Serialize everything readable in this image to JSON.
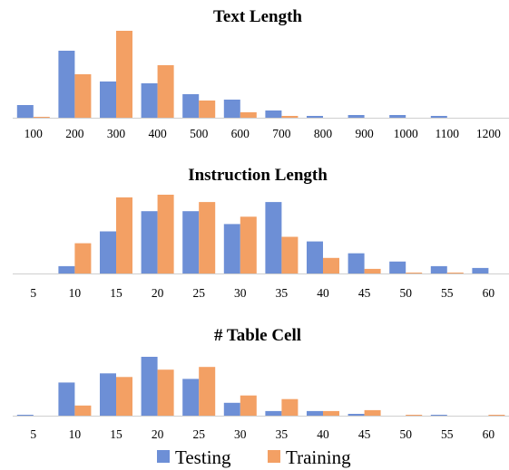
{
  "colors": {
    "testing": "#6d8fd6",
    "training": "#f3a064",
    "axis": "#cfcfcf"
  },
  "legend": {
    "items": [
      {
        "label": "Testing"
      },
      {
        "label": "Training"
      }
    ]
  },
  "chart_data": [
    {
      "type": "bar",
      "title": "Text Length",
      "categories": [
        "100",
        "200",
        "300",
        "400",
        "500",
        "600",
        "700",
        "800",
        "900",
        "1000",
        "1100",
        "1200"
      ],
      "series": [
        {
          "name": "Testing",
          "values": [
            14,
            74,
            40,
            38,
            26,
            20,
            8,
            2,
            3,
            3,
            2,
            0
          ]
        },
        {
          "name": "Training",
          "values": [
            1,
            48,
            96,
            58,
            19,
            6,
            2,
            0,
            0,
            0,
            0,
            0
          ]
        }
      ],
      "ylim": [
        0,
        96
      ],
      "grid": false,
      "legend": "bottom"
    },
    {
      "type": "bar",
      "title": "Instruction Length",
      "categories": [
        "5",
        "10",
        "15",
        "20",
        "25",
        "30",
        "35",
        "40",
        "45",
        "50",
        "55",
        "60"
      ],
      "series": [
        {
          "name": "Testing",
          "values": [
            0,
            8,
            46,
            68,
            68,
            54,
            78,
            35,
            22,
            13,
            8,
            6
          ]
        },
        {
          "name": "Training",
          "values": [
            0,
            33,
            83,
            86,
            78,
            62,
            40,
            17,
            5,
            1,
            1,
            0
          ]
        }
      ],
      "ylim": [
        0,
        86
      ],
      "grid": false,
      "legend": "bottom"
    },
    {
      "type": "bar",
      "title": "# Table Cell",
      "categories": [
        "5",
        "10",
        "15",
        "20",
        "25",
        "30",
        "35",
        "40",
        "45",
        "50",
        "55",
        "60"
      ],
      "series": [
        {
          "name": "Testing",
          "values": [
            1,
            36,
            46,
            64,
            40,
            14,
            5,
            5,
            2,
            0,
            1,
            0
          ]
        },
        {
          "name": "Training",
          "values": [
            0,
            11,
            42,
            50,
            53,
            22,
            18,
            5,
            6,
            1,
            0,
            1
          ]
        }
      ],
      "ylim": [
        0,
        64
      ],
      "grid": false,
      "legend": "bottom"
    }
  ]
}
